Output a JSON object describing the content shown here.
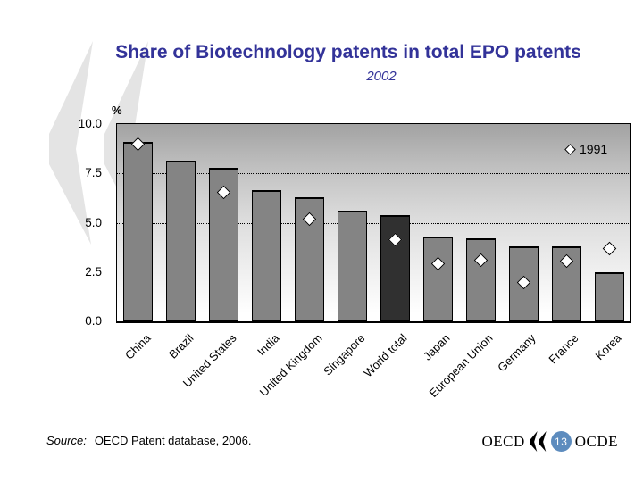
{
  "slide": {
    "title": "Share of Biotechnology patents in total EPO patents",
    "subtitle": "2002",
    "source_label": "Source:",
    "source_text": "OECD Patent database, 2006.",
    "logo_left": "OECD",
    "logo_right": "OCDE",
    "page_number": "13",
    "title_color": "#333399",
    "watermark_color": "#e4e4e4"
  },
  "chart_data": {
    "type": "bar",
    "title": "Share of Biotechnology patents in total EPO patents",
    "subtitle": "2002",
    "ylabel": "%",
    "ylim": [
      0,
      10
    ],
    "yticks": [
      10.0,
      7.5,
      5.0,
      2.5,
      0.0
    ],
    "ytick_labels": [
      "10.0",
      "7.5",
      "5.0",
      "2.5",
      "0.0"
    ],
    "gridlines_at": [
      7.5,
      5.0
    ],
    "grid": "dotted horizontal at 7.5 and 5.0 only",
    "legend": {
      "label": "1991",
      "marker": "white-diamond",
      "position": "top-right-inside"
    },
    "categories": [
      "China",
      "Brazil",
      "United States",
      "India",
      "United Kingdom",
      "Singapore",
      "World total",
      "Japan",
      "European Union",
      "Germany",
      "France",
      "Korea"
    ],
    "series": [
      {
        "name": "2002",
        "type": "bar",
        "values": [
          9.1,
          8.15,
          7.8,
          6.65,
          6.3,
          5.6,
          5.4,
          4.3,
          4.2,
          3.8,
          3.8,
          2.5
        ]
      },
      {
        "name": "1991",
        "type": "scatter-diamond",
        "values": [
          9.0,
          null,
          6.55,
          null,
          5.2,
          null,
          4.15,
          2.9,
          3.1,
          1.95,
          3.05,
          3.7
        ]
      }
    ],
    "highlight_category": "World total",
    "colors": {
      "bar": "#848484",
      "bar_highlight": "#303030",
      "marker_fill": "#ffffff",
      "marker_border": "#000000",
      "plot_gradient_top": "#a2a2a2",
      "plot_gradient_bottom": "#ffffff"
    }
  }
}
